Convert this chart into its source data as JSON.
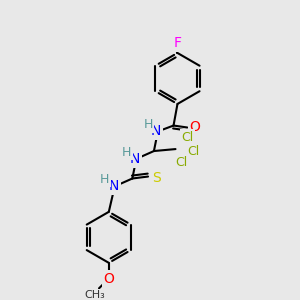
{
  "bg_color": "#e8e8e8",
  "atom_colors": {
    "C": "#000000",
    "H": "#5a9a9a",
    "N": "#0000ff",
    "O": "#ff0000",
    "F": "#ff00ff",
    "Cl": "#88aa00",
    "S": "#cccc00"
  },
  "bond_color": "#000000",
  "bond_width": 1.5,
  "font_size": 9
}
